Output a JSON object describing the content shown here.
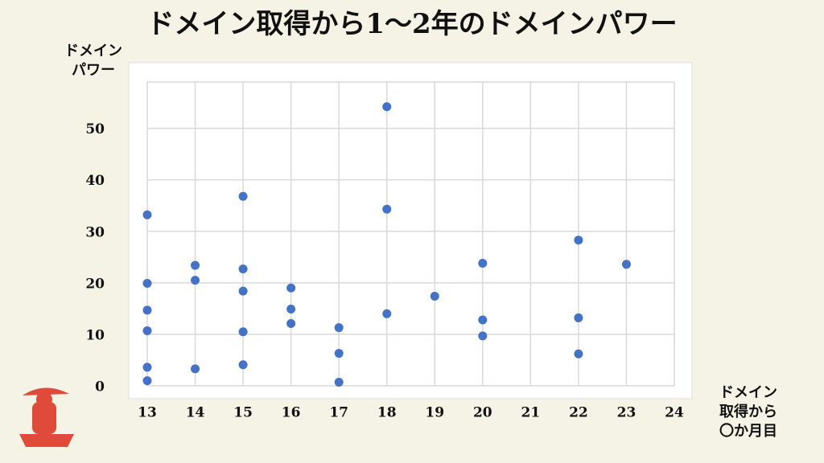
{
  "chart_data": {
    "type": "scatter",
    "title": "ドメイン取得から1〜2年のドメインパワー",
    "y_label": [
      "ドメイン",
      "パワー"
    ],
    "x_label": [
      "ドメイン",
      "取得から",
      "〇か月目"
    ],
    "x": [
      13,
      13,
      13,
      13,
      13,
      13,
      14,
      14,
      14,
      15,
      15,
      15,
      15,
      15,
      16,
      16,
      16,
      17,
      17,
      17,
      18,
      18,
      18,
      19,
      20,
      20,
      20,
      22,
      22,
      22,
      23
    ],
    "values": [
      33.2,
      19.9,
      14.7,
      10.7,
      3.6,
      1.0,
      23.4,
      20.5,
      3.3,
      36.8,
      22.7,
      18.4,
      10.5,
      4.1,
      19.0,
      14.9,
      12.1,
      11.3,
      6.3,
      0.7,
      54.2,
      34.3,
      14.0,
      17.4,
      23.8,
      12.8,
      9.7,
      28.3,
      13.2,
      6.2,
      23.6
    ],
    "color": "#4472c4",
    "xlim": [
      13,
      24
    ],
    "xticks": [
      13,
      14,
      15,
      16,
      17,
      18,
      19,
      20,
      21,
      22,
      23,
      24
    ],
    "ylim": [
      0,
      59
    ],
    "yticks": [
      0,
      10,
      20,
      30,
      40,
      50
    ],
    "grid": true
  }
}
